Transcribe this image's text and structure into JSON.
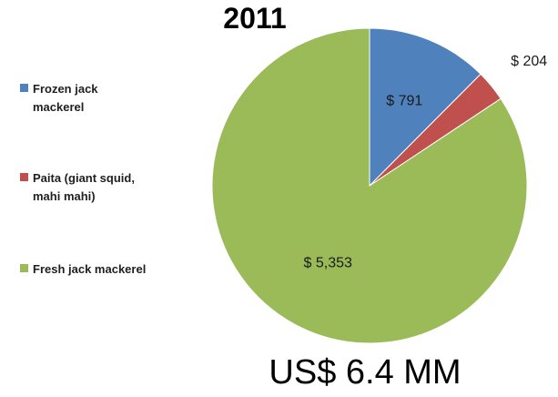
{
  "chart_data": {
    "type": "pie",
    "title": "2011",
    "categories": [
      "Frozen jack mackerel",
      "Paita (giant squid, mahi mahi)",
      "Fresh jack mackerel"
    ],
    "values": [
      791,
      204,
      5353
    ],
    "data_labels": [
      "$ 791",
      "$ 204",
      "$ 5,353"
    ],
    "colors": [
      "#4F81BD",
      "#C0504D",
      "#9BBB59"
    ],
    "legend_position": "left",
    "total_label": "US$ 6.4 MM"
  },
  "legend": {
    "items": [
      {
        "label_lines": [
          "Frozen jack",
          "mackerel"
        ],
        "color": "#4F81BD"
      },
      {
        "label_lines": [
          "Paita (giant squid,",
          "mahi mahi)"
        ],
        "color": "#C0504D"
      },
      {
        "label_lines": [
          "Fresh jack mackerel"
        ],
        "color": "#9BBB59"
      }
    ]
  }
}
